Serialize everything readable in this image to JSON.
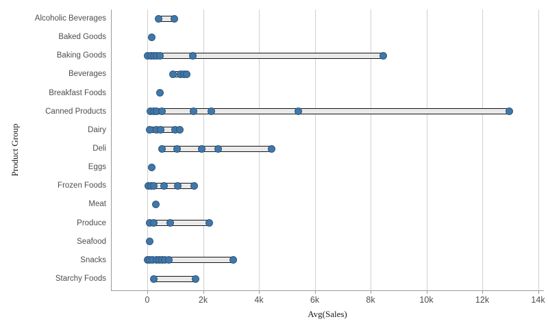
{
  "chart_data": {
    "type": "scatter",
    "subtype": "distribution-strip-plot",
    "title": "",
    "xlabel": "Avg(Sales)",
    "ylabel": "Product Group",
    "xlim": [
      -1300,
      14200
    ],
    "grid": "vertical-only",
    "legend": "none",
    "x_ticks": [
      {
        "label": "0",
        "value": 0
      },
      {
        "label": "2k",
        "value": 2000
      },
      {
        "label": "4k",
        "value": 4000
      },
      {
        "label": "6k",
        "value": 6000
      },
      {
        "label": "8k",
        "value": 8000
      },
      {
        "label": "10k",
        "value": 10000
      },
      {
        "label": "12k",
        "value": 12000
      },
      {
        "label": "14k",
        "value": 14000
      }
    ],
    "colors": {
      "point_fill": "#4177a9",
      "point_border": "#2f5880",
      "bar_fill": "#e9e9e9",
      "bar_border": "#141414",
      "gridline": "#cfcfcf",
      "axis_line": "#999999",
      "label_text": "#4d4d4d",
      "title_text": "#1a1a1a"
    },
    "series": [
      {
        "category": "Alcoholic Beverages",
        "points": [
          410,
          965
        ]
      },
      {
        "category": "Baked Goods",
        "points": [
          150
        ]
      },
      {
        "category": "Baking Goods",
        "points": [
          20,
          140,
          230,
          340,
          450,
          1620,
          8450
        ]
      },
      {
        "category": "Beverages",
        "points": [
          920,
          1190,
          1310,
          1410
        ]
      },
      {
        "category": "Breakfast Foods",
        "points": [
          450
        ]
      },
      {
        "category": "Canned Products",
        "points": [
          100,
          220,
          330,
          520,
          1660,
          2290,
          5420,
          12960
        ]
      },
      {
        "category": "Dairy",
        "points": [
          80,
          330,
          470,
          990,
          1160
        ]
      },
      {
        "category": "Deli",
        "points": [
          530,
          1060,
          1950,
          2550,
          4460
        ]
      },
      {
        "category": "Eggs",
        "points": [
          150
        ]
      },
      {
        "category": "Frozen Foods",
        "points": [
          40,
          140,
          220,
          610,
          1090,
          1680
        ]
      },
      {
        "category": "Meat",
        "points": [
          300
        ]
      },
      {
        "category": "Produce",
        "points": [
          90,
          220,
          820,
          2210
        ]
      },
      {
        "category": "Seafood",
        "points": [
          80
        ]
      },
      {
        "category": "Snacks",
        "points": [
          10,
          90,
          180,
          330,
          430,
          530,
          630,
          780,
          3070
        ]
      },
      {
        "category": "Starchy Foods",
        "points": [
          220,
          1720
        ]
      }
    ]
  }
}
